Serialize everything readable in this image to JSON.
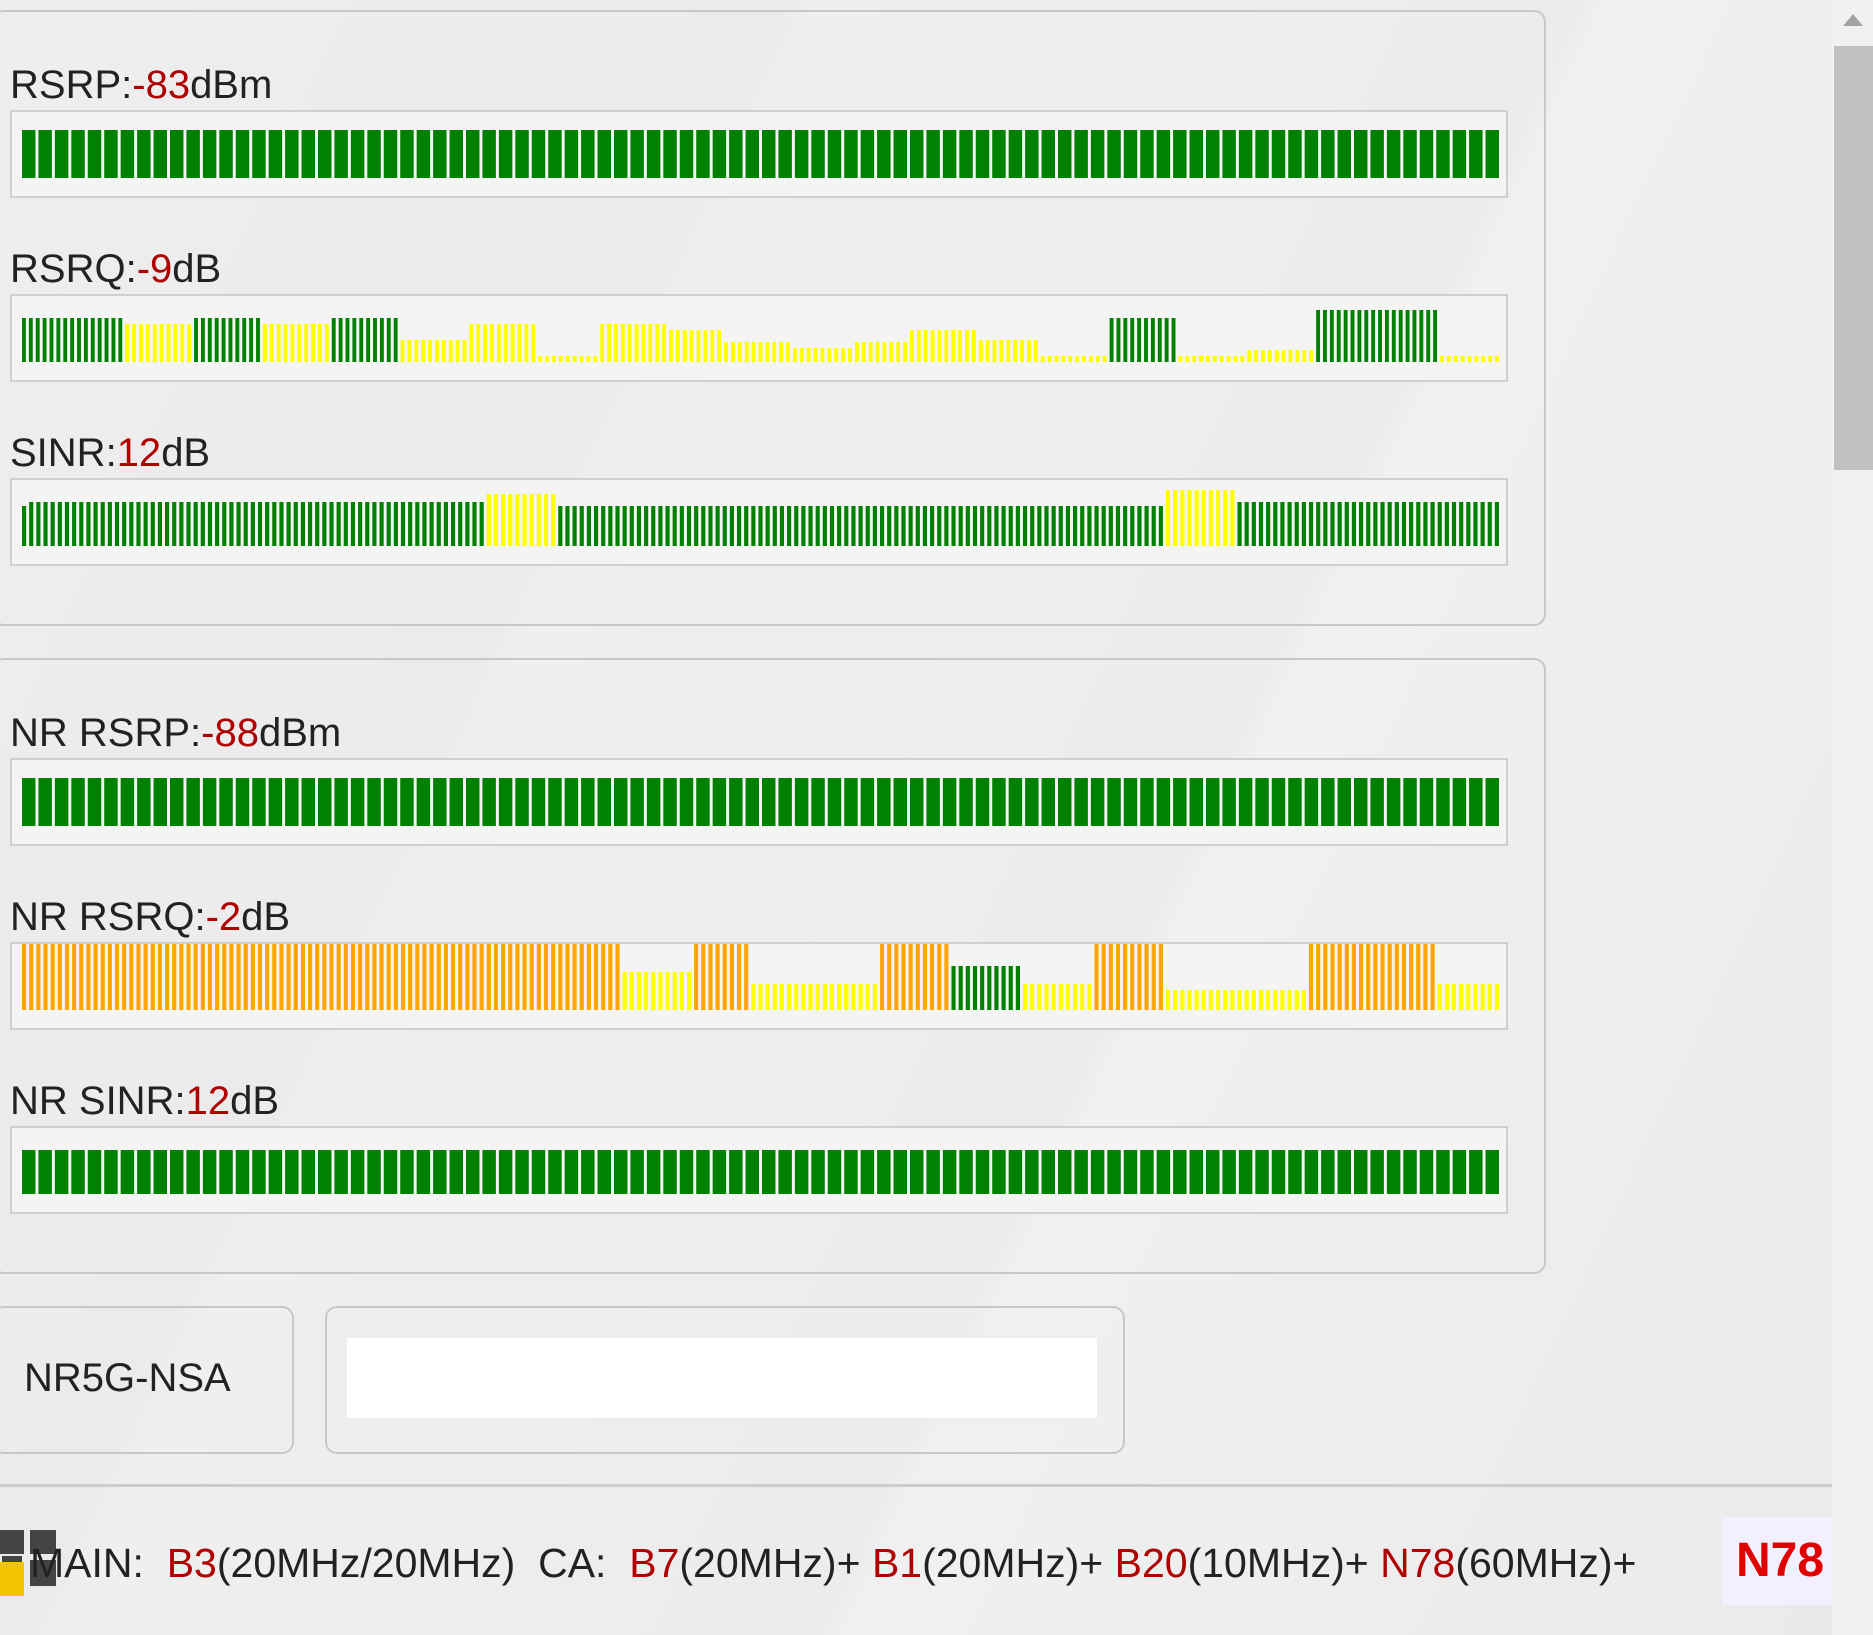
{
  "lte": {
    "rsrp": {
      "name": "RSRP:",
      "value": "-83",
      "unit": "dBm",
      "bars": "G:90"
    },
    "rsrq": {
      "name": "RSRQ:",
      "value": "-9",
      "unit": "dB",
      "bars": "G:15,Y:10,G:10,Y:10,G:10,Y:10,Y:10,D:9,Y:10,Y:8,Y:10,Y:9,Y:8,Y:10,Y:9,D:10,G:10,D:10,Y:10,G:18,D:9"
    },
    "sinr": {
      "name": "SINR:",
      "value": "12",
      "unit": "dB",
      "bars": "G:65,Y:10,G:85,Y:10,G:37"
    }
  },
  "nr": {
    "rsrp": {
      "name": "NR RSRP:",
      "value": "-88",
      "unit": "dBm",
      "bars": "G:90"
    },
    "rsrq": {
      "name": "NR RSRQ:",
      "value": "-2",
      "unit": "dB",
      "bars": "O:84,Y:10,O:8,Y:18,O:10,G:10,Y:10,O:10,Y:20,O:18,Y:9"
    },
    "sinr": {
      "name": "NR SINR:",
      "value": "12",
      "unit": "dB",
      "bars": "G:90"
    }
  },
  "network_mode": "NR5G-NSA",
  "band_info": {
    "main_label": "MAIN:",
    "main_band": "B3",
    "main_bw": "(20MHz/20MHz)",
    "ca_label": "CA:",
    "ca": [
      {
        "band": "B7",
        "bw": "(20MHz)+"
      },
      {
        "band": "B1",
        "bw": "(20MHz)+"
      },
      {
        "band": "B20",
        "bw": "(10MHz)+"
      },
      {
        "band": "N78",
        "bw": "(60MHz)+"
      }
    ],
    "badge": "N78"
  },
  "colors": {
    "green": "#008000",
    "yellow": "#ffff00",
    "orange": "#ffa500",
    "value_red": "#b00000",
    "badge_red": "#e00000"
  }
}
